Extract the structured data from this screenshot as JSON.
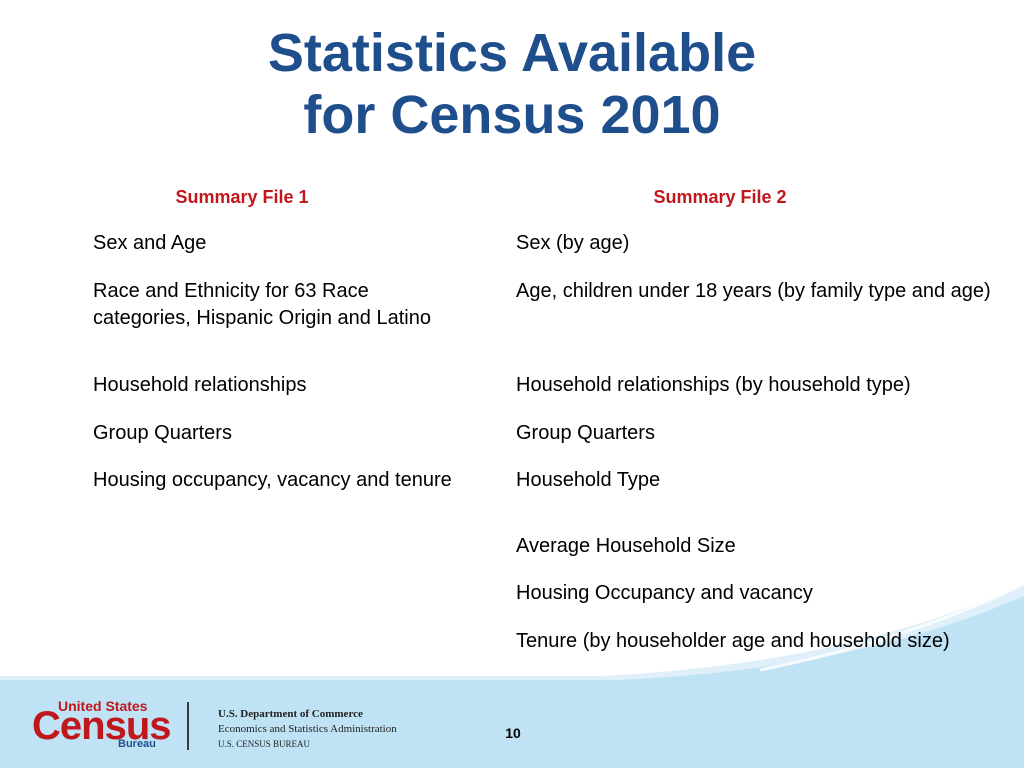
{
  "title": {
    "line1": "Statistics Available",
    "line2": "for Census 2010"
  },
  "columns": {
    "left_header": "Summary File 1",
    "right_header": "Summary File 2",
    "left_items": [
      "Sex and Age",
      "Race and Ethnicity for 63 Race categories, Hispanic Origin and Latino",
      "Household relationships",
      "Group Quarters",
      "Housing occupancy, vacancy and tenure"
    ],
    "right_items": [
      "Sex (by age)",
      "Age, children under 18 years (by family type and age)",
      "Household relationships (by household type)",
      "Group Quarters",
      "Household Type",
      "Average Household Size",
      "Housing Occupancy and vacancy",
      "Tenure (by householder age and household size)"
    ]
  },
  "footer": {
    "logo_united_states": "United States",
    "logo_census": "Census",
    "logo_bureau": "Bureau",
    "dept_line1": "U.S. Department of Commerce",
    "dept_line2": "Economics and Statistics Administration",
    "dept_line3": "U.S. CENSUS BUREAU",
    "page_number": "10"
  },
  "colors": {
    "title": "#1f4e8c",
    "column_header": "#c0171c",
    "footer_band": "#bfe3f5"
  }
}
